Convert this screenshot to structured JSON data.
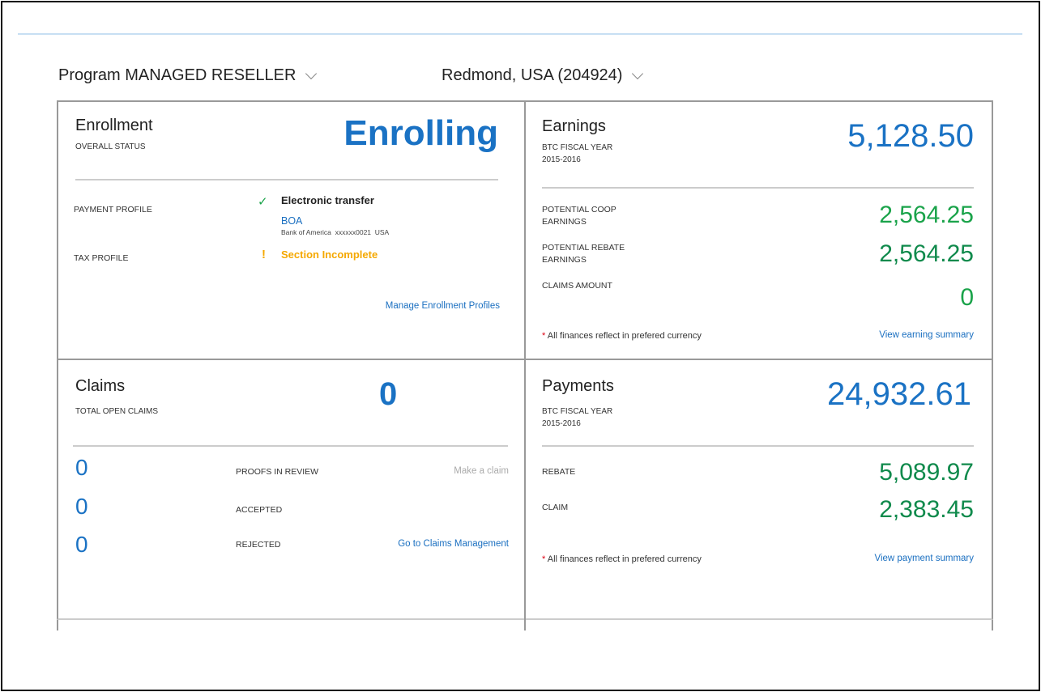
{
  "filters": {
    "program": "Program MANAGED RESELLER",
    "location": "Redmond, USA (204924)"
  },
  "enrollment": {
    "title": "Enrollment",
    "subtitle": "OVERALL STATUS",
    "status": "Enrolling",
    "payment_label": "PAYMENT PROFILE",
    "payment_method": "Electronic transfer",
    "bank": "BOA",
    "bank_detail": "Bank of America  xxxxxx0021  USA",
    "tax_label": "TAX PROFILE",
    "tax_status": "Section Incomplete",
    "tax_mark": "!",
    "manage_link": "Manage Enrollment Profiles"
  },
  "earnings": {
    "title": "Earnings",
    "subtitle": "BTC FISCAL YEAR",
    "years": "2015-2016",
    "total": "5,128.50",
    "coop_label1": "POTENTIAL COOP",
    "coop_label2": "EARNINGS",
    "coop": "2,564.25",
    "rebate_label1": "POTENTIAL REBATE",
    "rebate_label2": "EARNINGS",
    "rebate": "2,564.25",
    "claims_label": "CLAIMS AMOUNT",
    "claims": "0",
    "note": "All finances reflect in prefered currency",
    "link": "View earning summary"
  },
  "claims": {
    "title": "Claims",
    "subtitle": "TOTAL OPEN CLAIMS",
    "total": "0",
    "rows": [
      {
        "value": "0",
        "label": "PROOFS IN REVIEW"
      },
      {
        "value": "0",
        "label": "ACCEPTED"
      },
      {
        "value": "0",
        "label": "REJECTED"
      }
    ],
    "make_claim": "Make a claim",
    "manage_link": "Go to Claims Management"
  },
  "payments": {
    "title": "Payments",
    "subtitle": "BTC FISCAL YEAR",
    "years": "2015-2016",
    "total": "24,932.61",
    "rebate_label": "REBATE",
    "rebate": "5,089.97",
    "claim_label": "CLAIM",
    "claim": "2,383.45",
    "note": "All finances reflect in prefered currency",
    "link": "View payment summary"
  },
  "colors": {
    "blue": "#1a72c4",
    "green": "#1aa34a",
    "dark_green": "#108a4c",
    "warning": "#f5a800"
  }
}
